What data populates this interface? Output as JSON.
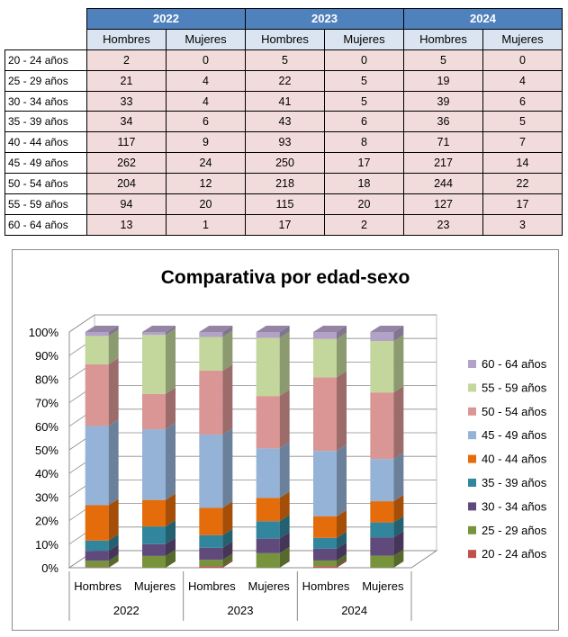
{
  "table": {
    "years": [
      "2022",
      "2023",
      "2024"
    ],
    "sexes": [
      "Hombres",
      "Mujeres"
    ],
    "rows": [
      {
        "label": "20 - 24 años",
        "values": [
          2,
          0,
          5,
          0,
          5,
          0
        ]
      },
      {
        "label": "25 - 29 años",
        "values": [
          21,
          4,
          22,
          5,
          19,
          4
        ]
      },
      {
        "label": "30 - 34 años",
        "values": [
          33,
          4,
          41,
          5,
          39,
          6
        ]
      },
      {
        "label": "35 - 39 años",
        "values": [
          34,
          6,
          43,
          6,
          36,
          5
        ]
      },
      {
        "label": "40 - 44 años",
        "values": [
          117,
          9,
          93,
          8,
          71,
          7
        ]
      },
      {
        "label": "45 - 49 años",
        "values": [
          262,
          24,
          250,
          17,
          217,
          14
        ]
      },
      {
        "label": "50 - 54 años",
        "values": [
          204,
          12,
          218,
          18,
          244,
          22
        ]
      },
      {
        "label": "55 - 59 años",
        "values": [
          94,
          20,
          115,
          20,
          127,
          17
        ]
      },
      {
        "label": "60 - 64 años",
        "values": [
          13,
          1,
          17,
          2,
          23,
          3
        ]
      }
    ]
  },
  "chart_data": {
    "type": "bar",
    "stacked": "percent",
    "title": "Comparativa por edad-sexo",
    "years": [
      "2022",
      "2023",
      "2024"
    ],
    "categories": [
      "Hombres",
      "Mujeres",
      "Hombres",
      "Mujeres",
      "Hombres",
      "Mujeres"
    ],
    "yticks": [
      "0%",
      "10%",
      "20%",
      "30%",
      "40%",
      "50%",
      "60%",
      "70%",
      "80%",
      "90%",
      "100%"
    ],
    "ylim": [
      0,
      100
    ],
    "legend_position": "right",
    "series": [
      {
        "name": "20 - 24 años",
        "color": "#c0504d",
        "values": [
          2,
          0,
          5,
          0,
          5,
          0
        ]
      },
      {
        "name": "25 - 29 años",
        "color": "#77933c",
        "values": [
          21,
          4,
          22,
          5,
          19,
          4
        ]
      },
      {
        "name": "30 - 34 años",
        "color": "#604a7b",
        "values": [
          33,
          4,
          41,
          5,
          39,
          6
        ]
      },
      {
        "name": "35 - 39 años",
        "color": "#31859c",
        "values": [
          34,
          6,
          43,
          6,
          36,
          5
        ]
      },
      {
        "name": "40 - 44 años",
        "color": "#e46c0a",
        "values": [
          117,
          9,
          93,
          8,
          71,
          7
        ]
      },
      {
        "name": "45 - 49 años",
        "color": "#95b3d7",
        "values": [
          262,
          24,
          250,
          17,
          217,
          14
        ]
      },
      {
        "name": "50 - 54 años",
        "color": "#d99694",
        "values": [
          204,
          12,
          218,
          18,
          244,
          22
        ]
      },
      {
        "name": "55 - 59 años",
        "color": "#c3d69b",
        "values": [
          94,
          20,
          115,
          20,
          127,
          17
        ]
      },
      {
        "name": "60 - 64 años",
        "color": "#b3a2c7",
        "values": [
          13,
          1,
          17,
          2,
          23,
          3
        ]
      }
    ]
  }
}
